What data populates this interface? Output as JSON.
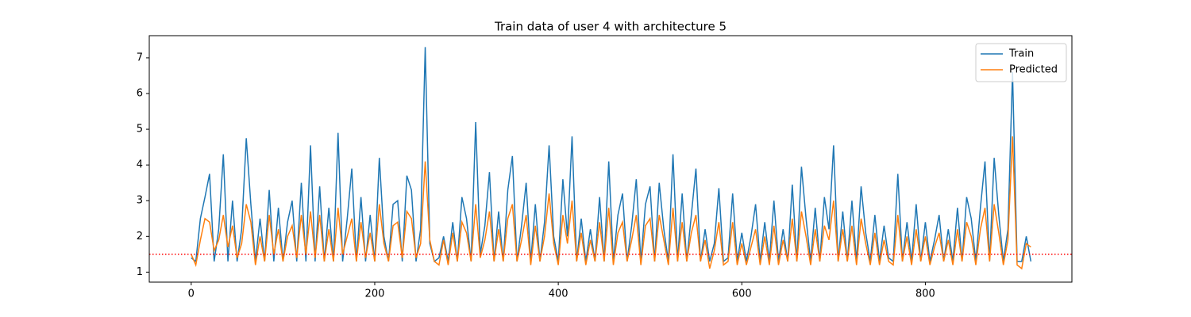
{
  "chart_data": {
    "type": "line",
    "title": "Train data of user 4 with architecture 5",
    "x": [
      0,
      5,
      10,
      15,
      20,
      25,
      30,
      35,
      40,
      45,
      50,
      55,
      60,
      65,
      70,
      75,
      80,
      85,
      90,
      95,
      100,
      105,
      110,
      115,
      120,
      125,
      130,
      135,
      140,
      145,
      150,
      155,
      160,
      165,
      170,
      175,
      180,
      185,
      190,
      195,
      200,
      205,
      210,
      215,
      220,
      225,
      230,
      235,
      240,
      245,
      250,
      255,
      260,
      265,
      270,
      275,
      280,
      285,
      290,
      295,
      300,
      305,
      310,
      315,
      320,
      325,
      330,
      335,
      340,
      345,
      350,
      355,
      360,
      365,
      370,
      375,
      380,
      385,
      390,
      395,
      400,
      405,
      410,
      415,
      420,
      425,
      430,
      435,
      440,
      445,
      450,
      455,
      460,
      465,
      470,
      475,
      480,
      485,
      490,
      495,
      500,
      505,
      510,
      515,
      520,
      525,
      530,
      535,
      540,
      545,
      550,
      555,
      560,
      565,
      570,
      575,
      580,
      585,
      590,
      595,
      600,
      605,
      610,
      615,
      620,
      625,
      630,
      635,
      640,
      645,
      650,
      655,
      660,
      665,
      670,
      675,
      680,
      685,
      690,
      695,
      700,
      705,
      710,
      715,
      720,
      725,
      730,
      735,
      740,
      745,
      750,
      755,
      760,
      765,
      770,
      775,
      780,
      785,
      790,
      795,
      800,
      805,
      810,
      815,
      820,
      825,
      830,
      835,
      840,
      845,
      850,
      855,
      860,
      865,
      870,
      875,
      880,
      885,
      890,
      895,
      900,
      905,
      910,
      915
    ],
    "series": [
      {
        "name": "Train",
        "color": "#1f77b4",
        "values": [
          1.4,
          1.3,
          2.5,
          3.1,
          3.75,
          1.3,
          2.2,
          4.3,
          1.3,
          3.0,
          1.3,
          2.2,
          4.75,
          2.9,
          1.3,
          2.5,
          1.3,
          3.3,
          1.3,
          2.8,
          1.3,
          2.4,
          3.0,
          1.3,
          3.5,
          1.3,
          4.55,
          1.3,
          3.4,
          1.3,
          2.8,
          1.3,
          4.9,
          1.3,
          2.5,
          3.9,
          1.3,
          3.1,
          1.3,
          2.6,
          1.3,
          4.2,
          2.0,
          1.3,
          2.9,
          3.0,
          1.3,
          3.7,
          3.3,
          1.3,
          2.2,
          7.3,
          1.8,
          1.3,
          1.4,
          2.0,
          1.3,
          2.4,
          1.3,
          3.1,
          2.5,
          1.3,
          5.2,
          1.5,
          2.3,
          3.8,
          1.3,
          2.7,
          1.3,
          3.3,
          4.25,
          1.3,
          2.3,
          3.5,
          1.3,
          2.9,
          1.3,
          2.4,
          4.55,
          2.0,
          1.3,
          3.6,
          2.0,
          4.8,
          1.3,
          2.5,
          1.3,
          2.2,
          1.3,
          3.1,
          1.3,
          4.1,
          1.3,
          2.6,
          3.2,
          1.3,
          2.3,
          3.6,
          1.3,
          2.9,
          3.4,
          1.3,
          3.5,
          2.2,
          1.3,
          4.3,
          1.3,
          3.2,
          1.3,
          2.6,
          3.9,
          1.3,
          2.2,
          1.3,
          1.8,
          3.35,
          1.3,
          1.4,
          3.2,
          1.3,
          2.1,
          1.3,
          2.0,
          2.9,
          1.3,
          2.4,
          1.3,
          3.0,
          1.3,
          2.2,
          1.3,
          3.45,
          1.3,
          3.95,
          2.5,
          1.3,
          2.8,
          1.3,
          3.1,
          2.2,
          4.55,
          1.3,
          2.7,
          1.3,
          3.0,
          1.3,
          3.4,
          2.1,
          1.3,
          2.6,
          1.3,
          2.3,
          1.4,
          1.3,
          3.75,
          1.3,
          2.4,
          1.3,
          2.9,
          1.3,
          2.4,
          1.3,
          1.9,
          2.6,
          1.3,
          2.2,
          1.3,
          2.8,
          1.3,
          3.1,
          2.5,
          1.3,
          2.8,
          4.1,
          1.3,
          4.2,
          2.6,
          1.3,
          2.2,
          6.6,
          1.3,
          1.3,
          2.0,
          1.3
        ]
      },
      {
        "name": "Predicted",
        "color": "#ff7f0e",
        "values": [
          1.5,
          1.2,
          1.9,
          2.5,
          2.4,
          1.6,
          1.9,
          2.6,
          1.7,
          2.3,
          1.4,
          1.8,
          2.9,
          2.4,
          1.2,
          2.0,
          1.3,
          2.6,
          1.5,
          2.2,
          1.3,
          2.0,
          2.3,
          1.4,
          2.6,
          1.5,
          2.7,
          1.4,
          2.6,
          1.3,
          2.2,
          1.3,
          2.8,
          1.5,
          2.0,
          2.5,
          1.3,
          2.4,
          1.4,
          2.1,
          1.3,
          2.9,
          1.8,
          1.3,
          2.3,
          2.4,
          1.4,
          2.7,
          2.5,
          1.4,
          1.8,
          4.1,
          1.9,
          1.3,
          1.2,
          1.9,
          1.2,
          2.1,
          1.3,
          2.4,
          2.1,
          1.3,
          2.9,
          1.4,
          1.9,
          2.7,
          1.3,
          2.2,
          1.3,
          2.5,
          2.9,
          1.3,
          1.9,
          2.6,
          1.2,
          2.3,
          1.3,
          2.0,
          3.2,
          1.8,
          1.2,
          2.6,
          1.8,
          3.0,
          1.3,
          2.1,
          1.2,
          1.9,
          1.3,
          2.4,
          1.3,
          2.8,
          1.2,
          2.1,
          2.4,
          1.3,
          1.9,
          2.6,
          1.2,
          2.3,
          2.5,
          1.3,
          2.6,
          1.9,
          1.2,
          2.8,
          1.3,
          2.4,
          1.3,
          2.1,
          2.6,
          1.3,
          1.9,
          1.1,
          1.6,
          2.4,
          1.2,
          1.3,
          2.4,
          1.2,
          1.8,
          1.2,
          1.7,
          2.2,
          1.2,
          2.0,
          1.2,
          2.3,
          1.2,
          1.9,
          1.3,
          2.5,
          1.3,
          2.7,
          2.0,
          1.2,
          2.2,
          1.3,
          2.3,
          1.9,
          3.0,
          1.3,
          2.2,
          1.3,
          2.3,
          1.2,
          2.5,
          1.8,
          1.2,
          2.1,
          1.2,
          1.9,
          1.3,
          1.2,
          2.6,
          1.3,
          2.0,
          1.2,
          2.2,
          1.3,
          2.0,
          1.2,
          1.7,
          2.1,
          1.3,
          1.9,
          1.2,
          2.2,
          1.3,
          2.4,
          2.0,
          1.2,
          2.2,
          2.8,
          1.3,
          2.9,
          2.1,
          1.2,
          1.9,
          4.8,
          1.2,
          1.1,
          1.8,
          1.7
        ]
      }
    ],
    "hline": {
      "value": 1.5,
      "color": "#ff0000"
    },
    "xlim": [
      -45.7,
      959.7
    ],
    "ylim": [
      0.72,
      7.62
    ],
    "xticks": [
      0,
      200,
      400,
      600,
      800
    ],
    "yticks": [
      1,
      2,
      3,
      4,
      5,
      6,
      7
    ],
    "legend": "upper right"
  }
}
